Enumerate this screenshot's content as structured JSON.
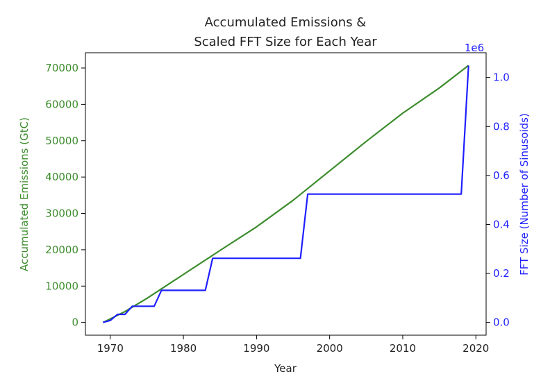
{
  "chart_data": {
    "type": "line",
    "title_line1": "Accumulated Emissions &",
    "title_line2": "Scaled FFT Size for Each Year",
    "xlabel": "Year",
    "ylabel_left": "Accumulated Emissions (GtC)",
    "ylabel_right": "FFT Size (Number of Sinusoids)",
    "right_axis_multiplier": "1e6",
    "xlim": [
      1966.6,
      2021.4
    ],
    "ylim_left": [
      -3500,
      74200
    ],
    "ylim_right": [
      -0.052,
      1.101
    ],
    "x_ticks": [
      1970,
      1980,
      1990,
      2000,
      2010,
      2020
    ],
    "left_ticks": [
      0,
      10000,
      20000,
      30000,
      40000,
      50000,
      60000,
      70000
    ],
    "right_ticks": [
      0.0,
      0.2,
      0.4,
      0.6,
      0.8,
      1.0
    ],
    "right_tick_labels": [
      "0.0",
      "0.2",
      "0.4",
      "0.6",
      "0.8",
      "1.0"
    ],
    "colors": {
      "left_series": "#3c8c2c",
      "right_series": "#1f1fff",
      "left_axis": "#3c8c2c",
      "right_axis": "#1f1fff"
    },
    "grid": false,
    "series": [
      {
        "axis": "left",
        "x": [
          1969,
          1972,
          1975,
          1980,
          1985,
          1990,
          1995,
          2000,
          2005,
          2010,
          2015,
          2019
        ],
        "values": [
          0,
          3000,
          6600,
          13200,
          19800,
          26300,
          33600,
          41700,
          49800,
          57600,
          64500,
          70700
        ]
      },
      {
        "axis": "right",
        "x": [
          1969,
          1970,
          1971,
          1972,
          1973,
          1974,
          1975,
          1976,
          1977,
          1978,
          1979,
          1980,
          1981,
          1982,
          1983,
          1984,
          1985,
          1986,
          1987,
          1988,
          1989,
          1990,
          1991,
          1992,
          1993,
          1994,
          1995,
          1996,
          1997,
          1998,
          1999,
          2000,
          2001,
          2002,
          2003,
          2004,
          2005,
          2006,
          2007,
          2008,
          2009,
          2010,
          2011,
          2012,
          2013,
          2014,
          2015,
          2016,
          2017,
          2018,
          2019
        ],
        "values": [
          0.0,
          0.008,
          0.033,
          0.033,
          0.066,
          0.066,
          0.066,
          0.066,
          0.131,
          0.131,
          0.131,
          0.131,
          0.131,
          0.131,
          0.131,
          0.262,
          0.262,
          0.262,
          0.262,
          0.262,
          0.262,
          0.262,
          0.262,
          0.262,
          0.262,
          0.262,
          0.262,
          0.262,
          0.524,
          0.524,
          0.524,
          0.524,
          0.524,
          0.524,
          0.524,
          0.524,
          0.524,
          0.524,
          0.524,
          0.524,
          0.524,
          0.524,
          0.524,
          0.524,
          0.524,
          0.524,
          0.524,
          0.524,
          0.524,
          0.524,
          1.049
        ]
      }
    ]
  }
}
